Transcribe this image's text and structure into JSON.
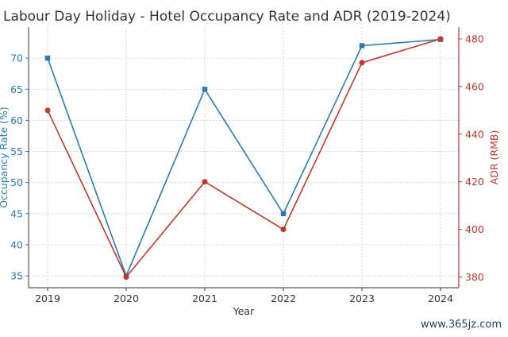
{
  "chart_data": {
    "type": "line",
    "title": "Labour Day Holiday - Hotel Occupancy Rate and ADR (2019-2024)",
    "xlabel": "Year",
    "categories": [
      "2019",
      "2020",
      "2021",
      "2022",
      "2023",
      "2024"
    ],
    "series": [
      {
        "name": "Occupancy Rate (%)",
        "axis": "left",
        "color": "#2a7bb3",
        "marker": "square",
        "values": [
          70,
          35,
          65,
          45,
          72,
          73
        ]
      },
      {
        "name": "ADR (RMB)",
        "axis": "right",
        "color": "#c0392b",
        "marker": "circle",
        "values": [
          450,
          380,
          420,
          400,
          470,
          480
        ]
      }
    ],
    "y_left": {
      "label": "Occupancy Rate (%)",
      "ticks": [
        "35",
        "40",
        "45",
        "50",
        "55",
        "60",
        "65",
        "70"
      ],
      "lim": [
        33.1,
        75.0
      ],
      "color": "#2a7bb3"
    },
    "y_right": {
      "label": "ADR (RMB)",
      "ticks": [
        "380",
        "400",
        "420",
        "440",
        "460",
        "480"
      ],
      "lim": [
        375.5,
        485.0
      ],
      "color": "#c0392b"
    },
    "grid": true
  },
  "watermark": "www.365jz.com"
}
